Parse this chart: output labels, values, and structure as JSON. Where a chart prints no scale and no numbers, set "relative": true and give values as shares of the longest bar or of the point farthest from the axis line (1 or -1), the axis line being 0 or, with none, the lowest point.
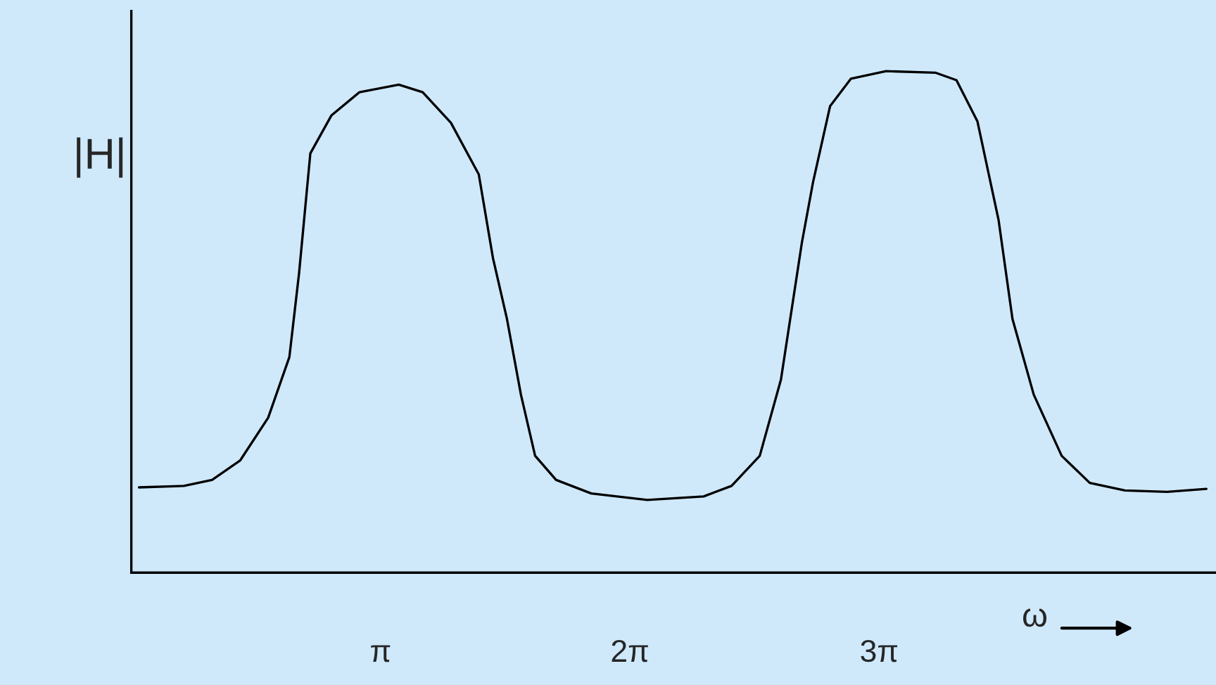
{
  "chart_data": {
    "type": "line",
    "relative": true,
    "xlabel": "ω",
    "ylabel": "|H|",
    "xlim": [
      0,
      13.67
    ],
    "xticks": [
      {
        "value": 3.1416,
        "label": "π"
      },
      {
        "value": 6.2832,
        "label": "2π"
      },
      {
        "value": 9.4248,
        "label": "3π"
      }
    ],
    "tick_labels": "x",
    "grid": false,
    "legend": false,
    "marker": "none",
    "line_style": "solid",
    "series": [
      {
        "color": "#000000",
        "x": [
          0.097,
          0.663,
          1.018,
          1.373,
          1.725,
          1.992,
          2.114,
          2.256,
          2.523,
          2.875,
          3.371,
          3.672,
          4.028,
          4.379,
          4.558,
          4.734,
          4.91,
          5.089,
          5.353,
          5.796,
          6.503,
          7.213,
          7.565,
          7.92,
          8.187,
          8.451,
          8.592,
          8.806,
          9.07,
          9.513,
          10.132,
          10.399,
          10.663,
          10.93,
          11.105,
          11.373,
          11.725,
          12.079,
          12.522,
          13.053,
          13.549
        ],
        "values": [
          0.17,
          0.173,
          0.185,
          0.224,
          0.309,
          0.43,
          0.597,
          0.836,
          0.912,
          0.958,
          0.973,
          0.958,
          0.897,
          0.794,
          0.627,
          0.506,
          0.355,
          0.233,
          0.185,
          0.158,
          0.145,
          0.152,
          0.173,
          0.233,
          0.385,
          0.658,
          0.779,
          0.93,
          0.985,
          1.0,
          0.997,
          0.982,
          0.9,
          0.703,
          0.506,
          0.355,
          0.233,
          0.179,
          0.164,
          0.161,
          0.167
        ]
      }
    ]
  }
}
